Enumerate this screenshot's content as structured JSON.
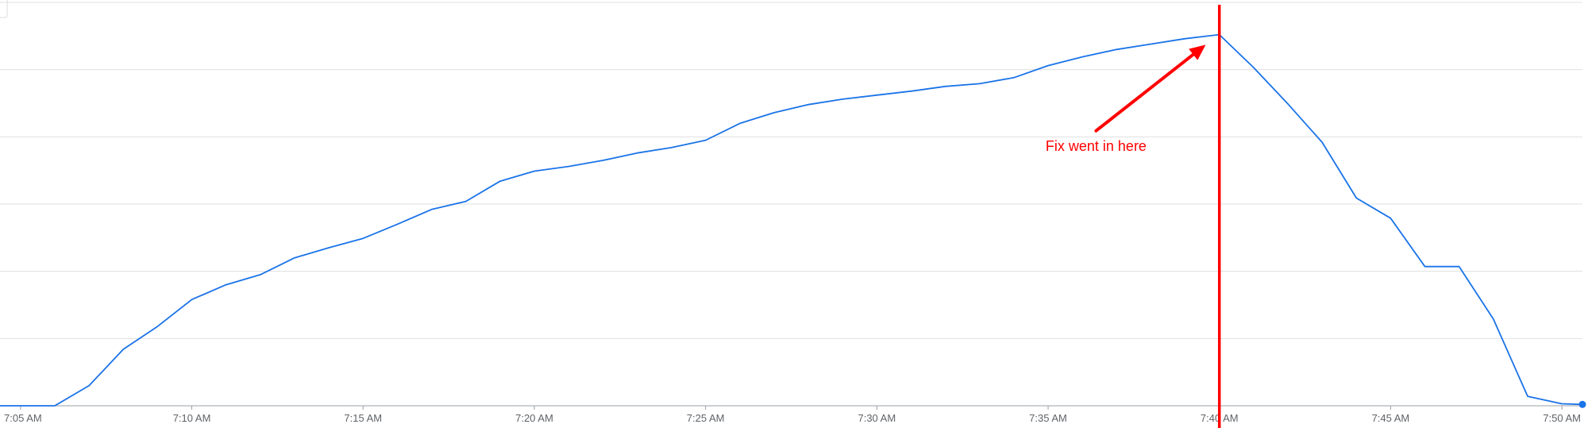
{
  "chart_data": {
    "type": "line",
    "title": "",
    "xlabel": "",
    "ylabel": "",
    "x_tick_labels": [
      "7:05 AM",
      "7:10 AM",
      "7:15 AM",
      "7:20 AM",
      "7:25 AM",
      "7:30 AM",
      "7:35 AM",
      "7:40 AM",
      "7:45 AM",
      "7:50 AM"
    ],
    "x_tick_minutes": [
      5,
      10,
      15,
      20,
      25,
      30,
      35,
      40,
      45,
      50
    ],
    "xlim": [
      4.4,
      50.6
    ],
    "ylim": [
      0,
      6
    ],
    "grid": true,
    "legend": "none",
    "series": [
      {
        "color": "#1a73e8",
        "x": [
          4.4,
          5,
          6,
          7,
          8,
          9,
          10,
          11,
          12,
          13,
          14,
          15,
          16,
          17,
          18,
          19,
          20,
          21,
          22,
          23,
          24,
          25,
          26,
          27,
          28,
          29,
          30,
          31,
          32,
          33,
          34,
          35,
          36,
          37,
          38,
          39,
          40,
          41,
          42,
          43,
          44,
          45,
          46,
          47,
          48,
          49,
          50,
          50.6
        ],
        "y": [
          0,
          0,
          0,
          0.3,
          0.84,
          1.18,
          1.58,
          1.8,
          1.95,
          2.2,
          2.35,
          2.49,
          2.7,
          2.92,
          3.04,
          3.34,
          3.49,
          3.56,
          3.65,
          3.76,
          3.84,
          3.95,
          4.2,
          4.36,
          4.48,
          4.56,
          4.62,
          4.68,
          4.75,
          4.79,
          4.88,
          5.06,
          5.19,
          5.3,
          5.38,
          5.46,
          5.52,
          5.03,
          4.49,
          3.92,
          3.09,
          2.79,
          2.07,
          2.07,
          1.29,
          0.14,
          0.03,
          0.02
        ]
      }
    ],
    "annotations": [
      {
        "text": "Fix went in here",
        "color": "#ff0000",
        "marker_x": 40,
        "arrow_from": [
          36.4,
          4.09
        ],
        "arrow_to": [
          39.6,
          5.37
        ],
        "text_pos": [
          36.4,
          3.79
        ]
      }
    ]
  },
  "colors": {
    "gridline": "#e0e0e0",
    "axis": "#9aa0a6",
    "tick_text": "#5f6368",
    "series": "#1a73e8",
    "annotation": "#ff0000"
  }
}
